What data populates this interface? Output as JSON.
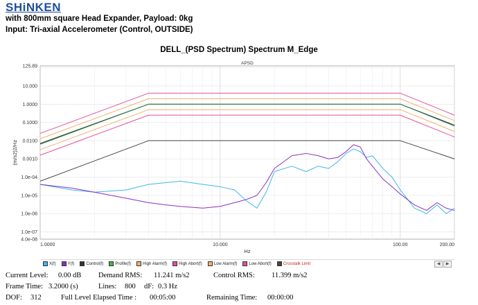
{
  "header": {
    "brand": "SHiNKEN",
    "line1": "with 800mm square Head Expander, Payload: 0kg",
    "line2": "Input: Tri-axial Accelerometer (Control, OUTSIDE)"
  },
  "chart_data": {
    "type": "line",
    "title": "DELL_(PSD Spectrum) Spectrum M_Edge",
    "subtitle": "APSD",
    "xlabel": "Hz",
    "ylabel": "(m/s2)2/Hz",
    "x_scale": "log",
    "y_scale": "log",
    "xlim": [
      1,
      200
    ],
    "ylim": [
      4e-08,
      125.89
    ],
    "y_ticks": [
      "125.89",
      "10.000",
      "1.0000",
      "0.1000",
      "0.0100",
      "0.0010",
      "1.0e-04",
      "1.0e-05",
      "1.0e-06",
      "1.0e-07",
      "4.0e-08"
    ],
    "x_ticks": [
      "1.0000",
      "10.000",
      "100.00",
      "200.00"
    ],
    "grid": true,
    "colors": {
      "X": "#3fb6ea",
      "Y": "#8a2fc4",
      "Control": "#333333",
      "Profile": "#2d8f4a",
      "High Alarm": "#f0b070",
      "High Abort": "#e0509a",
      "Low Alarm": "#f0b070",
      "Low Abort": "#e0509a",
      "Crosstalk Limit": "#444444"
    },
    "series": [
      {
        "name": "Control",
        "x": [
          1,
          4,
          100,
          200
        ],
        "y": [
          0.007,
          1.0,
          1.0,
          0.07
        ]
      },
      {
        "name": "Profile",
        "x": [
          1,
          4,
          100,
          200
        ],
        "y": [
          0.0063,
          1.0,
          1.0,
          0.063
        ]
      },
      {
        "name": "High Alarm",
        "x": [
          1,
          4,
          100,
          200
        ],
        "y": [
          0.0126,
          2.0,
          2.0,
          0.126
        ]
      },
      {
        "name": "High Abort",
        "x": [
          1,
          4,
          100,
          200
        ],
        "y": [
          0.025,
          4.0,
          4.0,
          0.25
        ]
      },
      {
        "name": "Low Alarm",
        "x": [
          1,
          4,
          100,
          200
        ],
        "y": [
          0.0032,
          0.5,
          0.5,
          0.032
        ]
      },
      {
        "name": "Low Abort",
        "x": [
          1,
          4,
          100,
          200
        ],
        "y": [
          0.0016,
          0.25,
          0.25,
          0.016
        ]
      },
      {
        "name": "Crosstalk Limit",
        "x": [
          1,
          4,
          100,
          200
        ],
        "y": [
          6e-05,
          0.01,
          0.01,
          0.001
        ]
      },
      {
        "name": "X",
        "x": [
          1,
          1.5,
          2,
          3,
          4,
          5,
          6,
          8,
          10,
          12,
          14,
          16,
          18,
          20,
          25,
          30,
          35,
          40,
          45,
          50,
          55,
          60,
          65,
          70,
          80,
          90,
          100,
          120,
          140,
          160,
          180,
          200
        ],
        "y": [
          4e-05,
          2e-05,
          1.5e-05,
          2e-05,
          4e-05,
          5e-05,
          6e-05,
          4e-05,
          3e-05,
          2e-05,
          5e-06,
          2e-06,
          1.5e-05,
          0.0002,
          0.0004,
          0.0002,
          0.0004,
          0.0003,
          0.0007,
          0.002,
          0.0035,
          0.0025,
          0.0012,
          0.0015,
          0.0003,
          0.0001,
          2e-05,
          2e-06,
          1e-06,
          3e-06,
          1e-06,
          2e-06
        ]
      },
      {
        "name": "Y",
        "x": [
          1,
          1.5,
          2,
          3,
          4,
          5,
          6,
          8,
          10,
          12,
          14,
          16,
          18,
          20,
          25,
          30,
          35,
          40,
          45,
          50,
          55,
          60,
          65,
          70,
          80,
          90,
          100,
          120,
          140,
          160,
          180,
          200
        ],
        "y": [
          4e-05,
          2.5e-05,
          1.5e-05,
          7e-06,
          4e-06,
          3e-06,
          2.5e-06,
          2e-06,
          2.5e-06,
          4e-06,
          6e-06,
          1e-05,
          5e-05,
          0.0003,
          0.0015,
          0.002,
          0.0015,
          0.001,
          0.0012,
          0.0025,
          0.006,
          0.0045,
          0.001,
          0.0004,
          8e-05,
          3e-05,
          1.2e-05,
          3e-06,
          1.5e-06,
          4e-06,
          2e-06,
          1.5e-06
        ]
      }
    ],
    "legend": [
      "X(f)",
      "Y(f)",
      "Control(f)",
      "Profile(f)",
      "High Alarm(f)",
      "High Abort(f)",
      "Low Alarm(f)",
      "Low Abort(f)",
      "Crosstalk Limit"
    ],
    "legend_position": "bottom"
  },
  "status": {
    "current_level_label": "Current Level:",
    "current_level_value": "0.00 dB",
    "demand_rms_label": "Demand RMS:",
    "demand_rms_value": "11.241 m/s2",
    "control_rms_label": "Control RMS:",
    "control_rms_value": "11.399 m/s2",
    "frame_time_label": "Frame Time:",
    "frame_time_value": "3.2000 (s)",
    "lines_label": "Lines:",
    "lines_value": "800",
    "df_label": "dF:",
    "df_value": "0.3 Hz",
    "dof_label": "DOF:",
    "dof_value": "312",
    "elapsed_label": "Full Level Elapsed Time :",
    "elapsed_value": "00:05:00",
    "remaining_label": "Remaining Time:",
    "remaining_value": "00:00:00"
  }
}
